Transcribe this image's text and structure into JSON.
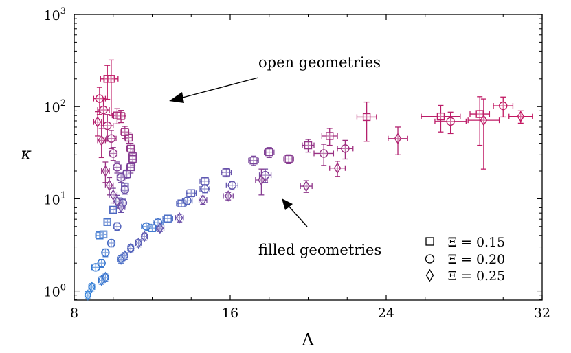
{
  "chart_data": {
    "type": "scatter",
    "title": "",
    "xlabel": "Λ",
    "ylabel": "κ",
    "xlim": [
      8,
      32
    ],
    "ylim_log10": [
      -0.1,
      3
    ],
    "yscale": "log",
    "grid": false,
    "x_ticks": [
      {
        "value": 8,
        "label": "8"
      },
      {
        "value": 16,
        "label": "16"
      },
      {
        "value": 24,
        "label": "24"
      },
      {
        "value": 32,
        "label": "32"
      }
    ],
    "y_ticks": [
      {
        "value": 1,
        "base": "10",
        "exp": "0"
      },
      {
        "value": 10,
        "base": "10",
        "exp": "1"
      },
      {
        "value": 100,
        "base": "10",
        "exp": "2"
      },
      {
        "value": 1000,
        "base": "10",
        "exp": "3"
      }
    ],
    "legend_position": "bottom-right",
    "color_scale": {
      "low": "#2f7fd8",
      "mid": "#6a4fa8",
      "high": "#c8145e"
    },
    "annotations": [
      {
        "text": "open geometries",
        "arrow_from": [
          13.2,
          115
        ],
        "arrow_to": [
          12.3,
          100
        ]
      },
      {
        "text": "filled geometries",
        "arrow_from": [
          19.8,
          3.7
        ],
        "arrow_to": [
          18.8,
          5.6
        ]
      }
    ],
    "series": [
      {
        "name": "Ξ = 0.15",
        "legend_label": "= 0.15",
        "marker": "square",
        "points": [
          {
            "x": 9.3,
            "y": 4.0,
            "xe": 0.2,
            "ye": 0.3,
            "c": 0.1
          },
          {
            "x": 9.5,
            "y": 4.1,
            "xe": 0.15,
            "ye": 0.3,
            "c": 0.12
          },
          {
            "x": 9.7,
            "y": 5.6,
            "xe": 0.15,
            "ye": 0.4,
            "c": 0.18
          },
          {
            "x": 10.0,
            "y": 7.6,
            "xe": 0.15,
            "ye": 0.6,
            "c": 0.25
          },
          {
            "x": 10.3,
            "y": 9.3,
            "xe": 0.15,
            "ye": 0.9,
            "c": 0.35
          },
          {
            "x": 10.6,
            "y": 13.5,
            "xe": 0.15,
            "ye": 1.3,
            "c": 0.45
          },
          {
            "x": 10.7,
            "y": 18.5,
            "xe": 0.2,
            "ye": 2,
            "c": 0.55
          },
          {
            "x": 10.9,
            "y": 22,
            "xe": 0.2,
            "ye": 3,
            "c": 0.6
          },
          {
            "x": 11.0,
            "y": 29,
            "xe": 0.2,
            "ye": 5,
            "c": 0.65
          },
          {
            "x": 11.0,
            "y": 27,
            "xe": 0.2,
            "ye": 4,
            "c": 0.65
          },
          {
            "x": 10.9,
            "y": 35,
            "xe": 0.2,
            "ye": 5,
            "c": 0.7
          },
          {
            "x": 10.8,
            "y": 46,
            "xe": 0.2,
            "ye": 6,
            "c": 0.75
          },
          {
            "x": 10.6,
            "y": 53,
            "xe": 0.2,
            "ye": 8,
            "c": 0.78
          },
          {
            "x": 10.4,
            "y": 79,
            "xe": 0.25,
            "ye": 12,
            "c": 0.85
          },
          {
            "x": 10.2,
            "y": 80,
            "xe": 0.25,
            "ye": 15,
            "c": 0.85
          },
          {
            "x": 9.7,
            "y": 200,
            "xe": 0.35,
            "ye": 80,
            "c": 0.95
          },
          {
            "x": 9.9,
            "y": 200,
            "xe": 0.35,
            "ye": 120,
            "c": 0.95
          },
          {
            "x": 12.0,
            "y": 4.8,
            "xe": 0.25,
            "ye": 0.4,
            "c": 0.1
          },
          {
            "x": 12.8,
            "y": 6.1,
            "xe": 0.25,
            "ye": 0.5,
            "c": 0.2
          },
          {
            "x": 13.5,
            "y": 8.9,
            "xe": 0.25,
            "ye": 0.7,
            "c": 0.3
          },
          {
            "x": 14.0,
            "y": 11.5,
            "xe": 0.25,
            "ye": 1.0,
            "c": 0.35
          },
          {
            "x": 14.7,
            "y": 15.5,
            "xe": 0.25,
            "ye": 1.5,
            "c": 0.4
          },
          {
            "x": 15.8,
            "y": 19.3,
            "xe": 0.25,
            "ye": 2,
            "c": 0.48
          },
          {
            "x": 17.2,
            "y": 26,
            "xe": 0.25,
            "ye": 3,
            "c": 0.58
          },
          {
            "x": 18.0,
            "y": 32,
            "xe": 0.25,
            "ye": 4,
            "c": 0.62
          },
          {
            "x": 19.0,
            "y": 27,
            "xe": 0.25,
            "ye": 3,
            "c": 0.66
          },
          {
            "x": 20.0,
            "y": 38,
            "xe": 0.3,
            "ye": 6,
            "c": 0.72
          },
          {
            "x": 21.1,
            "y": 48,
            "xe": 0.4,
            "ye": 10,
            "c": 0.8
          },
          {
            "x": 23.0,
            "y": 77,
            "xe": 0.5,
            "ye": 35,
            "c": 0.9
          },
          {
            "x": 26.8,
            "y": 78,
            "xe": 1.0,
            "ye": 25,
            "c": 0.93
          },
          {
            "x": 28.8,
            "y": 83,
            "xe": 0.5,
            "ye": 45,
            "c": 0.95
          }
        ]
      },
      {
        "name": "Ξ = 0.20",
        "legend_label": "= 0.20",
        "marker": "circle",
        "points": [
          {
            "x": 9.1,
            "y": 1.8,
            "xe": 0.2,
            "ye": 0.15,
            "c": 0.05
          },
          {
            "x": 9.4,
            "y": 2.0,
            "xe": 0.15,
            "ye": 0.2,
            "c": 0.08
          },
          {
            "x": 9.6,
            "y": 2.6,
            "xe": 0.15,
            "ye": 0.25,
            "c": 0.12
          },
          {
            "x": 9.9,
            "y": 3.3,
            "xe": 0.15,
            "ye": 0.3,
            "c": 0.2
          },
          {
            "x": 10.2,
            "y": 5.0,
            "xe": 0.15,
            "ye": 0.5,
            "c": 0.3
          },
          {
            "x": 10.5,
            "y": 9.0,
            "xe": 0.15,
            "ye": 0.9,
            "c": 0.45
          },
          {
            "x": 10.6,
            "y": 12.5,
            "xe": 0.15,
            "ye": 1.3,
            "c": 0.5
          },
          {
            "x": 10.4,
            "y": 17,
            "xe": 0.2,
            "ye": 2,
            "c": 0.55
          },
          {
            "x": 10.2,
            "y": 22,
            "xe": 0.2,
            "ye": 3,
            "c": 0.6
          },
          {
            "x": 10.0,
            "y": 31,
            "xe": 0.2,
            "ye": 5,
            "c": 0.7
          },
          {
            "x": 9.9,
            "y": 45,
            "xe": 0.25,
            "ye": 10,
            "c": 0.78
          },
          {
            "x": 9.7,
            "y": 62,
            "xe": 0.3,
            "ye": 20,
            "c": 0.85
          },
          {
            "x": 9.5,
            "y": 92,
            "xe": 0.3,
            "ye": 30,
            "c": 0.9
          },
          {
            "x": 9.3,
            "y": 122,
            "xe": 0.3,
            "ye": 40,
            "c": 0.95
          },
          {
            "x": 11.7,
            "y": 5.0,
            "xe": 0.25,
            "ye": 0.4,
            "c": 0.1
          },
          {
            "x": 12.3,
            "y": 5.5,
            "xe": 0.25,
            "ye": 0.5,
            "c": 0.15
          },
          {
            "x": 13.8,
            "y": 9.5,
            "xe": 0.25,
            "ye": 0.8,
            "c": 0.3
          },
          {
            "x": 14.7,
            "y": 12.8,
            "xe": 0.25,
            "ye": 1.2,
            "c": 0.38
          },
          {
            "x": 16.1,
            "y": 14,
            "xe": 0.3,
            "ye": 1.5,
            "c": 0.45
          },
          {
            "x": 17.8,
            "y": 18,
            "xe": 0.3,
            "ye": 3,
            "c": 0.55
          },
          {
            "x": 20.8,
            "y": 31,
            "xe": 0.5,
            "ye": 8,
            "c": 0.75
          },
          {
            "x": 21.9,
            "y": 35,
            "xe": 0.4,
            "ye": 8,
            "c": 0.78
          },
          {
            "x": 27.3,
            "y": 69,
            "xe": 0.8,
            "ye": 18,
            "c": 0.93
          },
          {
            "x": 30.0,
            "y": 102,
            "xe": 0.5,
            "ye": 25,
            "c": 0.97
          }
        ]
      },
      {
        "name": "Ξ = 0.25",
        "legend_label": "= 0.25",
        "marker": "diamond",
        "points": [
          {
            "x": 8.7,
            "y": 0.9,
            "xe": 0.15,
            "ye": 0.08,
            "c": 0.0
          },
          {
            "x": 8.9,
            "y": 1.1,
            "xe": 0.15,
            "ye": 0.1,
            "c": 0.02
          },
          {
            "x": 9.4,
            "y": 1.3,
            "xe": 0.15,
            "ye": 0.12,
            "c": 0.08
          },
          {
            "x": 9.6,
            "y": 1.4,
            "xe": 0.15,
            "ye": 0.12,
            "c": 0.1
          },
          {
            "x": 10.4,
            "y": 2.2,
            "xe": 0.15,
            "ye": 0.2,
            "c": 0.2
          },
          {
            "x": 10.6,
            "y": 2.4,
            "xe": 0.15,
            "ye": 0.2,
            "c": 0.25
          },
          {
            "x": 10.9,
            "y": 2.9,
            "xe": 0.15,
            "ye": 0.25,
            "c": 0.3
          },
          {
            "x": 11.3,
            "y": 3.3,
            "xe": 0.15,
            "ye": 0.3,
            "c": 0.35
          },
          {
            "x": 11.6,
            "y": 3.9,
            "xe": 0.15,
            "ye": 0.35,
            "c": 0.4
          },
          {
            "x": 12.4,
            "y": 4.8,
            "xe": 0.2,
            "ye": 0.4,
            "c": 0.45
          },
          {
            "x": 13.4,
            "y": 6.2,
            "xe": 0.2,
            "ye": 0.6,
            "c": 0.5
          },
          {
            "x": 14.6,
            "y": 9.7,
            "xe": 0.2,
            "ye": 1.0,
            "c": 0.55
          },
          {
            "x": 15.9,
            "y": 10.7,
            "xe": 0.25,
            "ye": 1.0,
            "c": 0.6
          },
          {
            "x": 17.6,
            "y": 16,
            "xe": 0.3,
            "ye": 5,
            "c": 0.65
          },
          {
            "x": 19.9,
            "y": 13.7,
            "xe": 0.3,
            "ye": 2,
            "c": 0.7
          },
          {
            "x": 21.5,
            "y": 21.5,
            "xe": 0.4,
            "ye": 4,
            "c": 0.8
          },
          {
            "x": 24.6,
            "y": 45,
            "xe": 0.5,
            "ye": 15,
            "c": 0.88
          },
          {
            "x": 29.0,
            "y": 71,
            "xe": 0.8,
            "ye": 50,
            "c": 0.95
          },
          {
            "x": 30.9,
            "y": 78,
            "xe": 0.6,
            "ye": 12,
            "c": 0.98
          },
          {
            "x": 9.2,
            "y": 68,
            "xe": 0.2,
            "ye": 20,
            "c": 0.9
          },
          {
            "x": 9.4,
            "y": 43,
            "xe": 0.2,
            "ye": 15,
            "c": 0.85
          },
          {
            "x": 9.6,
            "y": 20,
            "xe": 0.2,
            "ye": 5,
            "c": 0.75
          },
          {
            "x": 9.8,
            "y": 14,
            "xe": 0.2,
            "ye": 3,
            "c": 0.7
          },
          {
            "x": 10.0,
            "y": 11,
            "xe": 0.2,
            "ye": 2,
            "c": 0.6
          },
          {
            "x": 10.2,
            "y": 9.4,
            "xe": 0.2,
            "ye": 1.5,
            "c": 0.55
          },
          {
            "x": 10.4,
            "y": 8.1,
            "xe": 0.2,
            "ye": 1,
            "c": 0.5
          }
        ]
      }
    ]
  }
}
